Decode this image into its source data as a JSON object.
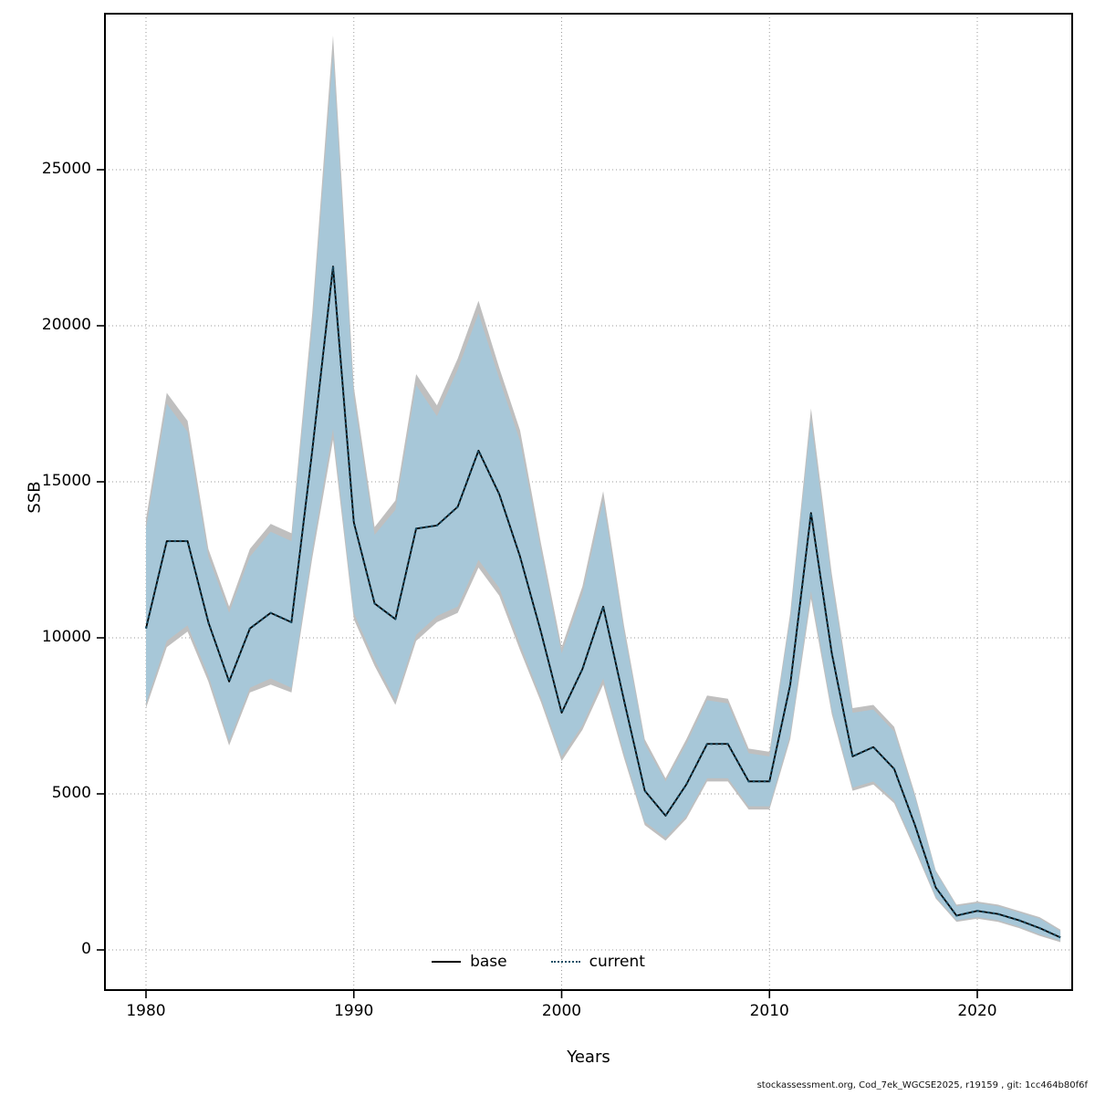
{
  "footer": {
    "text": "stockassessment.org, Cod_7ek_WGCSE2025, r19159 , git: 1cc464b80f6f"
  },
  "chart_data": {
    "type": "line",
    "title": "",
    "xlabel": "Years",
    "ylabel": "SSB",
    "xlim": [
      1979,
      2025
    ],
    "ylim": [
      0,
      30000
    ],
    "x_ticks": [
      1980,
      1990,
      2000,
      2010,
      2020
    ],
    "y_ticks": [
      0,
      5000,
      10000,
      15000,
      20000,
      25000
    ],
    "grid": "dotted",
    "legend_position": "bottom-center-inside",
    "legend": [
      {
        "label": "base",
        "style": "solid",
        "color": "#000000"
      },
      {
        "label": "current",
        "style": "dotted",
        "color": "#1b4f66"
      }
    ],
    "colors": {
      "base_band": "#bfbfbf",
      "current_band": "#a5c8da",
      "base_line": "#000000",
      "current_line": "#1b4f66"
    },
    "years": [
      1980,
      1981,
      1982,
      1983,
      1984,
      1985,
      1986,
      1987,
      1988,
      1989,
      1990,
      1991,
      1992,
      1993,
      1994,
      1995,
      1996,
      1997,
      1998,
      1999,
      2000,
      2001,
      2002,
      2003,
      2004,
      2005,
      2006,
      2007,
      2008,
      2009,
      2010,
      2011,
      2012,
      2013,
      2014,
      2015,
      2016,
      2017,
      2018,
      2019,
      2020,
      2021,
      2022,
      2023,
      2024
    ],
    "series": {
      "base": {
        "values": [
          10300,
          13100,
          13100,
          10500,
          8600,
          10300,
          10800,
          10500,
          16000,
          21900,
          13700,
          11100,
          10600,
          13500,
          13600,
          14200,
          16000,
          14600,
          12600,
          10200,
          7600,
          9000,
          11000,
          8000,
          5100,
          4300,
          5300,
          6600,
          6600,
          5400,
          5400,
          8500,
          14000,
          9500,
          6200,
          6500,
          5800,
          4000,
          2000,
          1100,
          1250,
          1150,
          950,
          700,
          400
        ],
        "lower": [
          7750,
          9700,
          10200,
          8600,
          6550,
          8250,
          8500,
          8250,
          12550,
          16350,
          10600,
          9100,
          7850,
          9900,
          10500,
          10800,
          12250,
          11350,
          9600,
          7950,
          6050,
          7050,
          8500,
          6150,
          4000,
          3500,
          4200,
          5400,
          5400,
          4500,
          4500,
          6750,
          11250,
          7550,
          5100,
          5300,
          4700,
          3200,
          1650,
          900,
          1000,
          900,
          700,
          450,
          250
        ],
        "upper": [
          13800,
          17850,
          16950,
          12850,
          11000,
          12850,
          13650,
          13350,
          20400,
          29300,
          18050,
          13550,
          14400,
          18450,
          17450,
          18950,
          20800,
          18650,
          16650,
          13050,
          9700,
          11650,
          14700,
          10400,
          6750,
          5500,
          6750,
          8150,
          8050,
          6450,
          6350,
          10800,
          17350,
          12050,
          7750,
          7850,
          7150,
          5000,
          2550,
          1450,
          1550,
          1450,
          1250,
          1050,
          650
        ]
      },
      "current": {
        "values": [
          10300,
          13100,
          13100,
          10500,
          8600,
          10300,
          10800,
          10500,
          16000,
          21900,
          13700,
          11100,
          10600,
          13500,
          13600,
          14200,
          16000,
          14600,
          12600,
          10200,
          7600,
          9000,
          11000,
          8000,
          5100,
          4300,
          5300,
          6600,
          6600,
          5400,
          5400,
          8500,
          14000,
          9500,
          6200,
          6500,
          5800,
          4000,
          2000,
          1100,
          1250,
          1150,
          950,
          700,
          400
        ],
        "lower": [
          7900,
          9900,
          10400,
          8800,
          6700,
          8400,
          8700,
          8400,
          12800,
          16700,
          10800,
          9300,
          8000,
          10100,
          10700,
          11000,
          12500,
          11600,
          9800,
          8100,
          6200,
          7200,
          8700,
          6300,
          4100,
          3600,
          4300,
          5500,
          5500,
          4600,
          4600,
          6900,
          11500,
          7700,
          5200,
          5400,
          4800,
          3300,
          1700,
          950,
          1050,
          950,
          750,
          500,
          300
        ],
        "upper": [
          13500,
          17500,
          16600,
          12600,
          10800,
          12600,
          13400,
          13100,
          20000,
          28700,
          17700,
          13300,
          14100,
          18100,
          17100,
          18600,
          20400,
          18300,
          16300,
          12800,
          9500,
          11400,
          14400,
          10200,
          6600,
          5400,
          6600,
          8000,
          7900,
          6300,
          6200,
          10600,
          17000,
          11800,
          7600,
          7700,
          7000,
          4900,
          2500,
          1400,
          1500,
          1400,
          1200,
          1000,
          600
        ]
      }
    }
  }
}
